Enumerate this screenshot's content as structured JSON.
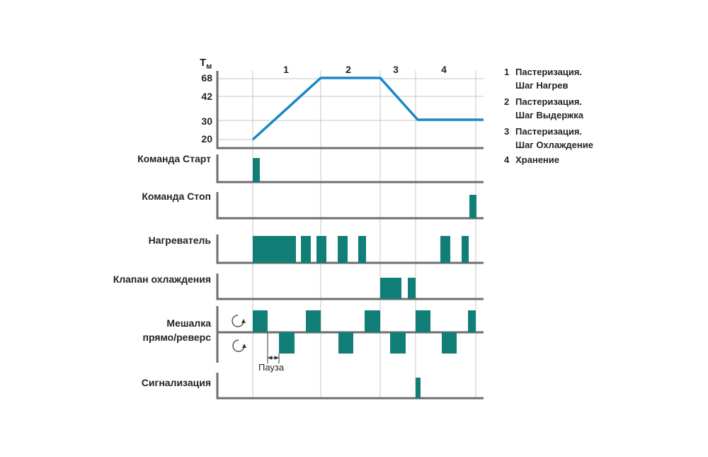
{
  "axis": {
    "y_label": "Т",
    "y_label_sub": "м",
    "y_ticks": [
      "68",
      "42",
      "30",
      "20"
    ]
  },
  "phases": [
    "1",
    "2",
    "3",
    "4"
  ],
  "signals": {
    "start": "Команда Старт",
    "stop": "Команда Стоп",
    "heater": "Нагреватель",
    "cooling_valve": "Клапан охлаждения",
    "mixer_line1": "Мешалка",
    "mixer_line2": "прямо/реверс",
    "alarm": "Сигнализация"
  },
  "pause_label": "Пауза",
  "legend": [
    {
      "num": "1",
      "line1": "Пастеризация.",
      "line2": "Шаг Нагрев"
    },
    {
      "num": "2",
      "line1": "Пастеризация.",
      "line2": "Шаг Выдержка"
    },
    {
      "num": "3",
      "line1": "Пастеризация.",
      "line2": "Шаг Охлаждение"
    },
    {
      "num": "4",
      "line1": "Хранение",
      "line2": ""
    }
  ],
  "colors": {
    "temperature_line": "#1a87c9",
    "pulse": "#117f78",
    "axis": "#6e6e6e",
    "grid": "#c4c4c4"
  },
  "icons": {
    "mixer_forward": "rotate-clockwise-icon",
    "mixer_reverse": "rotate-counterclockwise-icon"
  }
}
